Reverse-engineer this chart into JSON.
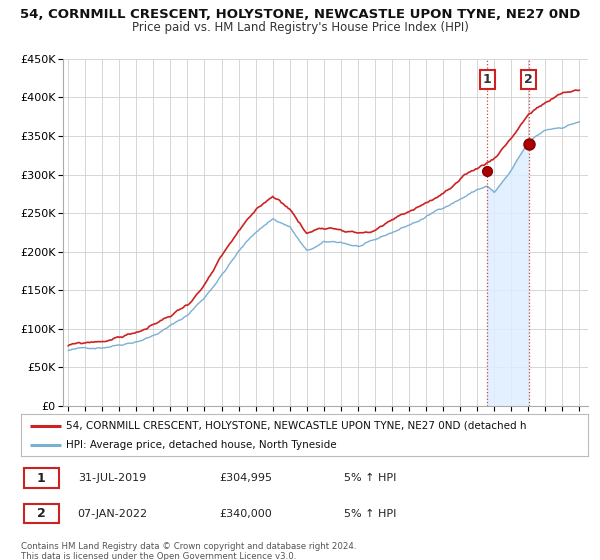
{
  "title": "54, CORNMILL CRESCENT, HOLYSTONE, NEWCASTLE UPON TYNE, NE27 0ND",
  "subtitle": "Price paid vs. HM Land Registry's House Price Index (HPI)",
  "ylim": [
    0,
    450000
  ],
  "yticks": [
    0,
    50000,
    100000,
    150000,
    200000,
    250000,
    300000,
    350000,
    400000,
    450000
  ],
  "ytick_labels": [
    "£0",
    "£50K",
    "£100K",
    "£150K",
    "£200K",
    "£250K",
    "£300K",
    "£350K",
    "£400K",
    "£450K"
  ],
  "xlim_start": 1994.7,
  "xlim_end": 2025.5,
  "xticks": [
    1995,
    1996,
    1997,
    1998,
    1999,
    2000,
    2001,
    2002,
    2003,
    2004,
    2005,
    2006,
    2007,
    2008,
    2009,
    2010,
    2011,
    2012,
    2013,
    2014,
    2015,
    2016,
    2017,
    2018,
    2019,
    2020,
    2021,
    2022,
    2023,
    2024,
    2025
  ],
  "background_color": "#ffffff",
  "plot_bg_color": "#ffffff",
  "grid_color": "#d0d0d0",
  "hpi_color": "#7bafd4",
  "price_color": "#cc2222",
  "shade_color": "#ddeeff",
  "vline_color": "#cc4444",
  "ann1_x": 2019.58,
  "ann1_y": 304995,
  "ann2_x": 2022.02,
  "ann2_y": 340000,
  "annotation1": {
    "date": "31-JUL-2019",
    "price": "£304,995",
    "note": "5% ↑ HPI"
  },
  "annotation2": {
    "date": "07-JAN-2022",
    "price": "£340,000",
    "note": "5% ↑ HPI"
  },
  "legend1_text": "54, CORNMILL CRESCENT, HOLYSTONE, NEWCASTLE UPON TYNE, NE27 0ND (detached h",
  "legend2_text": "HPI: Average price, detached house, North Tyneside",
  "footer1": "Contains HM Land Registry data © Crown copyright and database right 2024.",
  "footer2": "This data is licensed under the Open Government Licence v3.0."
}
